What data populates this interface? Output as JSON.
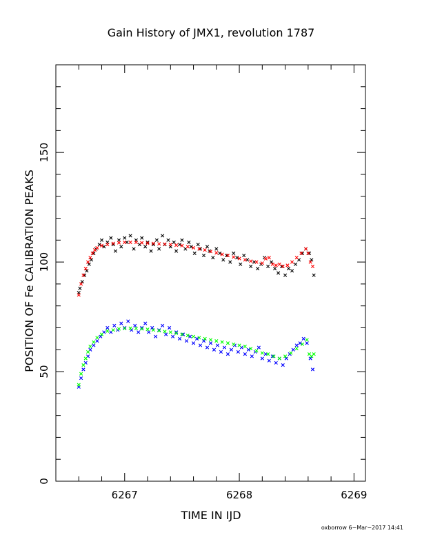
{
  "chart_data": {
    "type": "scatter",
    "title": "Gain History of JMX1, revolution 1787",
    "xlabel": "TIME IN IJD",
    "ylabel": "POSITION OF Fe CALIBRATION PEAKS",
    "xlim": [
      6266.4,
      6269.1
    ],
    "ylim": [
      0,
      190
    ],
    "xticks": [
      6267,
      6268,
      6269
    ],
    "yticks": [
      0,
      50,
      100,
      150
    ],
    "footer": "oxborrow  6−Mar−2017 14:41",
    "series": [
      {
        "color": "#000000",
        "marker": "x",
        "points": [
          [
            6266.6,
            86
          ],
          [
            6266.61,
            88
          ],
          [
            6266.63,
            91
          ],
          [
            6266.65,
            94
          ],
          [
            6266.67,
            96
          ],
          [
            6266.69,
            99
          ],
          [
            6266.71,
            101
          ],
          [
            6266.73,
            104
          ],
          [
            6266.75,
            106
          ],
          [
            6266.78,
            108
          ],
          [
            6266.8,
            110
          ],
          [
            6266.82,
            107
          ],
          [
            6266.85,
            109
          ],
          [
            6266.88,
            111
          ],
          [
            6266.9,
            108
          ],
          [
            6266.92,
            105
          ],
          [
            6266.95,
            110
          ],
          [
            6266.97,
            107
          ],
          [
            6267.0,
            111
          ],
          [
            6267.02,
            109
          ],
          [
            6267.05,
            112
          ],
          [
            6267.08,
            106
          ],
          [
            6267.1,
            110
          ],
          [
            6267.13,
            108
          ],
          [
            6267.15,
            111
          ],
          [
            6267.18,
            107
          ],
          [
            6267.2,
            109
          ],
          [
            6267.23,
            105
          ],
          [
            6267.25,
            108
          ],
          [
            6267.28,
            110
          ],
          [
            6267.3,
            106
          ],
          [
            6267.33,
            112
          ],
          [
            6267.35,
            108
          ],
          [
            6267.38,
            110
          ],
          [
            6267.4,
            107
          ],
          [
            6267.43,
            109
          ],
          [
            6267.45,
            105
          ],
          [
            6267.48,
            108
          ],
          [
            6267.5,
            110
          ],
          [
            6267.53,
            106
          ],
          [
            6267.56,
            109
          ],
          [
            6267.58,
            107
          ],
          [
            6267.61,
            104
          ],
          [
            6267.64,
            108
          ],
          [
            6267.66,
            106
          ],
          [
            6267.69,
            103
          ],
          [
            6267.72,
            107
          ],
          [
            6267.74,
            105
          ],
          [
            6267.77,
            102
          ],
          [
            6267.8,
            106
          ],
          [
            6267.83,
            104
          ],
          [
            6267.86,
            101
          ],
          [
            6267.89,
            103
          ],
          [
            6267.92,
            100
          ],
          [
            6267.95,
            104
          ],
          [
            6267.98,
            102
          ],
          [
            6268.01,
            99
          ],
          [
            6268.04,
            103
          ],
          [
            6268.07,
            101
          ],
          [
            6268.1,
            98
          ],
          [
            6268.13,
            100
          ],
          [
            6268.16,
            97
          ],
          [
            6268.19,
            99
          ],
          [
            6268.22,
            102
          ],
          [
            6268.25,
            98
          ],
          [
            6268.28,
            100
          ],
          [
            6268.31,
            97
          ],
          [
            6268.34,
            95
          ],
          [
            6268.37,
            98
          ],
          [
            6268.4,
            94
          ],
          [
            6268.43,
            97
          ],
          [
            6268.46,
            96
          ],
          [
            6268.49,
            99
          ],
          [
            6268.52,
            101
          ],
          [
            6268.55,
            104
          ],
          [
            6268.58,
            106
          ],
          [
            6268.61,
            104
          ],
          [
            6268.63,
            101
          ],
          [
            6268.65,
            94
          ]
        ]
      },
      {
        "color": "#ff0000",
        "marker": "x",
        "points": [
          [
            6266.6,
            85
          ],
          [
            6266.62,
            90
          ],
          [
            6266.64,
            94
          ],
          [
            6266.66,
            97
          ],
          [
            6266.68,
            100
          ],
          [
            6266.7,
            102
          ],
          [
            6266.72,
            104
          ],
          [
            6266.74,
            105.5
          ],
          [
            6266.76,
            106.5
          ],
          [
            6266.8,
            107.5
          ],
          [
            6266.85,
            108
          ],
          [
            6266.9,
            108.5
          ],
          [
            6266.95,
            108.8
          ],
          [
            6267.0,
            109
          ],
          [
            6267.05,
            109
          ],
          [
            6267.1,
            109
          ],
          [
            6267.15,
            108.8
          ],
          [
            6267.2,
            108.6
          ],
          [
            6267.25,
            108.5
          ],
          [
            6267.3,
            108.3
          ],
          [
            6267.35,
            108.2
          ],
          [
            6267.4,
            108
          ],
          [
            6267.45,
            107.7
          ],
          [
            6267.5,
            107.5
          ],
          [
            6267.55,
            107
          ],
          [
            6267.6,
            106.5
          ],
          [
            6267.65,
            106
          ],
          [
            6267.7,
            105.5
          ],
          [
            6267.75,
            104.8
          ],
          [
            6267.8,
            104.2
          ],
          [
            6267.85,
            103.5
          ],
          [
            6267.9,
            103
          ],
          [
            6267.95,
            102.3
          ],
          [
            6268.0,
            101.6
          ],
          [
            6268.05,
            101
          ],
          [
            6268.1,
            100.4
          ],
          [
            6268.15,
            100
          ],
          [
            6268.2,
            99.5
          ],
          [
            6268.23,
            101.5
          ],
          [
            6268.26,
            102
          ],
          [
            6268.29,
            99
          ],
          [
            6268.32,
            98.5
          ],
          [
            6268.35,
            99
          ],
          [
            6268.38,
            98
          ],
          [
            6268.42,
            98.5
          ],
          [
            6268.46,
            100
          ],
          [
            6268.5,
            102
          ],
          [
            6268.54,
            104
          ],
          [
            6268.58,
            106
          ],
          [
            6268.6,
            104
          ],
          [
            6268.62,
            100
          ],
          [
            6268.64,
            98
          ]
        ]
      },
      {
        "color": "#0000ff",
        "marker": "x",
        "points": [
          [
            6266.6,
            43
          ],
          [
            6266.62,
            47
          ],
          [
            6266.64,
            51
          ],
          [
            6266.66,
            54
          ],
          [
            6266.68,
            57
          ],
          [
            6266.7,
            60
          ],
          [
            6266.73,
            62
          ],
          [
            6266.76,
            64
          ],
          [
            6266.79,
            66
          ],
          [
            6266.82,
            68
          ],
          [
            6266.85,
            70
          ],
          [
            6266.88,
            68
          ],
          [
            6266.91,
            71
          ],
          [
            6266.94,
            69
          ],
          [
            6266.97,
            72
          ],
          [
            6267.0,
            70
          ],
          [
            6267.03,
            73
          ],
          [
            6267.06,
            69
          ],
          [
            6267.09,
            71
          ],
          [
            6267.12,
            68
          ],
          [
            6267.15,
            70
          ],
          [
            6267.18,
            72
          ],
          [
            6267.21,
            68
          ],
          [
            6267.24,
            70
          ],
          [
            6267.27,
            66
          ],
          [
            6267.3,
            69
          ],
          [
            6267.33,
            71
          ],
          [
            6267.36,
            67
          ],
          [
            6267.39,
            70
          ],
          [
            6267.42,
            66
          ],
          [
            6267.45,
            68
          ],
          [
            6267.48,
            65
          ],
          [
            6267.51,
            67
          ],
          [
            6267.54,
            64
          ],
          [
            6267.57,
            66
          ],
          [
            6267.6,
            63
          ],
          [
            6267.63,
            65
          ],
          [
            6267.66,
            62
          ],
          [
            6267.69,
            64
          ],
          [
            6267.72,
            61
          ],
          [
            6267.75,
            63
          ],
          [
            6267.78,
            60
          ],
          [
            6267.81,
            62
          ],
          [
            6267.84,
            59
          ],
          [
            6267.87,
            61
          ],
          [
            6267.9,
            58
          ],
          [
            6267.93,
            60
          ],
          [
            6267.96,
            62
          ],
          [
            6267.99,
            59
          ],
          [
            6268.02,
            61
          ],
          [
            6268.05,
            58
          ],
          [
            6268.08,
            60
          ],
          [
            6268.11,
            57
          ],
          [
            6268.14,
            59
          ],
          [
            6268.17,
            61
          ],
          [
            6268.2,
            56
          ],
          [
            6268.23,
            58
          ],
          [
            6268.26,
            55
          ],
          [
            6268.29,
            57
          ],
          [
            6268.32,
            54
          ],
          [
            6268.35,
            56
          ],
          [
            6268.38,
            53
          ],
          [
            6268.41,
            56
          ],
          [
            6268.44,
            58
          ],
          [
            6268.47,
            60
          ],
          [
            6268.5,
            62
          ],
          [
            6268.53,
            63
          ],
          [
            6268.56,
            65
          ],
          [
            6268.59,
            63
          ],
          [
            6268.62,
            56
          ],
          [
            6268.64,
            51
          ]
        ]
      },
      {
        "color": "#00ff00",
        "marker": "x",
        "points": [
          [
            6266.6,
            44
          ],
          [
            6266.62,
            49
          ],
          [
            6266.64,
            53
          ],
          [
            6266.66,
            56
          ],
          [
            6266.68,
            59
          ],
          [
            6266.7,
            61.5
          ],
          [
            6266.73,
            63.5
          ],
          [
            6266.76,
            65.5
          ],
          [
            6266.8,
            67
          ],
          [
            6266.85,
            68.5
          ],
          [
            6266.9,
            69
          ],
          [
            6266.95,
            69.5
          ],
          [
            6267.0,
            69.7
          ],
          [
            6267.05,
            69.8
          ],
          [
            6267.1,
            69.7
          ],
          [
            6267.15,
            69.5
          ],
          [
            6267.2,
            69.3
          ],
          [
            6267.25,
            69
          ],
          [
            6267.3,
            68.7
          ],
          [
            6267.35,
            68.3
          ],
          [
            6267.4,
            68
          ],
          [
            6267.45,
            67.5
          ],
          [
            6267.5,
            67
          ],
          [
            6267.55,
            66.5
          ],
          [
            6267.6,
            66
          ],
          [
            6267.65,
            65.5
          ],
          [
            6267.7,
            65
          ],
          [
            6267.75,
            64.5
          ],
          [
            6267.8,
            64
          ],
          [
            6267.85,
            63.5
          ],
          [
            6267.9,
            63
          ],
          [
            6267.95,
            62.5
          ],
          [
            6268.0,
            62
          ],
          [
            6268.05,
            61.5
          ],
          [
            6268.1,
            60.5
          ],
          [
            6268.15,
            59.5
          ],
          [
            6268.2,
            58.5
          ],
          [
            6268.25,
            58
          ],
          [
            6268.3,
            57
          ],
          [
            6268.35,
            56
          ],
          [
            6268.4,
            57
          ],
          [
            6268.45,
            58.5
          ],
          [
            6268.5,
            60.5
          ],
          [
            6268.55,
            62.5
          ],
          [
            6268.59,
            64.5
          ],
          [
            6268.61,
            58
          ],
          [
            6268.63,
            57
          ],
          [
            6268.65,
            58
          ]
        ]
      }
    ]
  }
}
